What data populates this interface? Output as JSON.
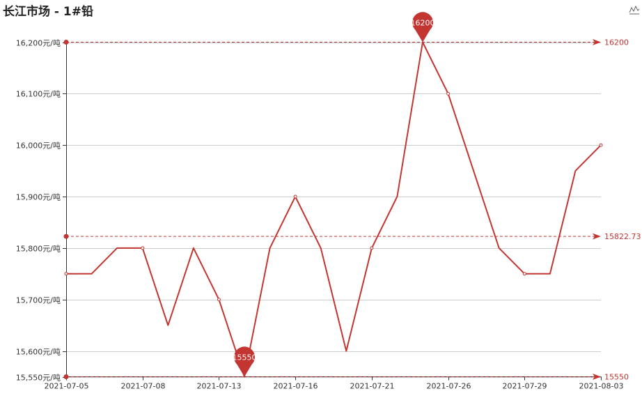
{
  "chart_data": {
    "type": "line",
    "title": "长江市场 - 1#铅",
    "y_unit_suffix": "元/吨",
    "ylim": [
      15550,
      16200
    ],
    "yticks": [
      15550,
      15600,
      15700,
      15800,
      15900,
      16000,
      16100,
      16200
    ],
    "ytick_labels": [
      "15,550元/吨",
      "15,600元/吨",
      "15,700元/吨",
      "15,800元/吨",
      "15,900元/吨",
      "16,000元/吨",
      "16,100元/吨",
      "16,200元/吨"
    ],
    "x_labels": [
      "2021-07-05",
      "2021-07-08",
      "2021-07-13",
      "2021-07-16",
      "2021-07-21",
      "2021-07-26",
      "2021-07-29",
      "2021-08-03"
    ],
    "x": [
      "2021-07-05",
      "2021-07-06",
      "2021-07-07",
      "2021-07-08",
      "2021-07-09",
      "2021-07-12",
      "2021-07-13",
      "2021-07-14",
      "2021-07-15",
      "2021-07-16",
      "2021-07-19",
      "2021-07-20",
      "2021-07-21",
      "2021-07-22",
      "2021-07-23",
      "2021-07-26",
      "2021-07-27",
      "2021-07-28",
      "2021-07-29",
      "2021-07-30",
      "2021-08-02",
      "2021-08-03"
    ],
    "values": [
      15750,
      15750,
      15800,
      15800,
      15650,
      15800,
      15700,
      15550,
      15800,
      15900,
      15800,
      15600,
      15800,
      15900,
      16200,
      16100,
      15950,
      15800,
      15750,
      15750,
      15950,
      16000
    ],
    "max_point": {
      "label": "16200",
      "value": 16200,
      "x": "2021-07-23"
    },
    "min_point": {
      "label": "15550",
      "value": 15550,
      "x": "2021-07-14"
    },
    "mark_lines": [
      {
        "name": "max",
        "value": 16200,
        "label": "16200"
      },
      {
        "name": "average",
        "value": 15822.73,
        "label": "15822.73"
      },
      {
        "name": "min",
        "value": 15550,
        "label": "15550"
      }
    ],
    "grid": true,
    "legend": "none"
  },
  "colors": {
    "series": "#c23531",
    "grid": "#cccccc",
    "axis": "#333333",
    "text": "#333333"
  },
  "toolbox": {
    "icon": "line-chart-icon"
  }
}
